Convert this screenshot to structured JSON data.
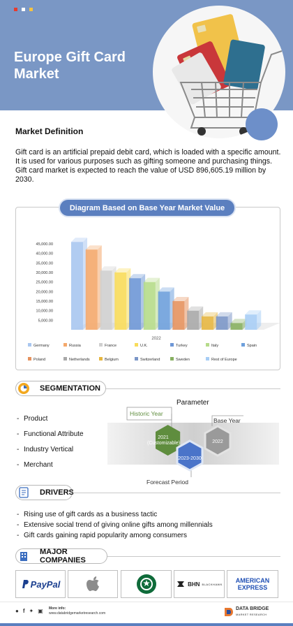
{
  "header": {
    "title_line1": "Europe Gift Card",
    "title_line2": "Market",
    "dot_colors": [
      "#e63b2e",
      "#ffffff",
      "#f5c342"
    ]
  },
  "definition": {
    "heading": "Market Definition",
    "text": "Gift card is an artificial prepaid debit card, which is loaded with a specific amount. It is used for various purposes such as gifting someone and purchasing things. Gift card market is expected to reach the value of USD 896,605.19 million by 2030."
  },
  "chart_section": {
    "pill_label": "Diagram Based on Base Year Market Value"
  },
  "chart_data": {
    "type": "bar",
    "categories": [
      "Germany",
      "Russia",
      "France",
      "U.K.",
      "Turkey",
      "Italy",
      "Spain",
      "Poland",
      "Netherlands",
      "Belgium",
      "Switzerland",
      "Sweden",
      "Rest of Europe"
    ],
    "values": [
      46000,
      42000,
      31000,
      30000,
      27000,
      25000,
      20000,
      15000,
      10000,
      7000,
      7000,
      3500,
      8000
    ],
    "colors": [
      "#a9c7f0",
      "#f4a86b",
      "#cfcfcf",
      "#f8dc5a",
      "#6e97d6",
      "#b6db8a",
      "#6ea0dc",
      "#e5925e",
      "#a8a8a8",
      "#e6b640",
      "#7b96c7",
      "#87b061",
      "#a7cdf5"
    ],
    "xlabel": "2022",
    "ylim": [
      0,
      45000
    ],
    "yticks": [
      "45,000.00",
      "40,000.00",
      "35,000.00",
      "30,000.00",
      "25,000.00",
      "20,000.00",
      "15,000.00",
      "10,000.00",
      "5,000.00"
    ],
    "legend_rows": [
      [
        "Germany",
        "Russia",
        "France",
        "U.K.",
        "Turkey",
        "Italy",
        "Spain"
      ],
      [
        "Poland",
        "Netherlands",
        "Belgium",
        "Switzerland",
        "Sweden",
        "Rest of Europe"
      ]
    ]
  },
  "segmentation": {
    "label": "SEGMENTATION",
    "items": [
      "Product",
      "Functional Attribute",
      "Industry Vertical",
      "Merchant"
    ]
  },
  "parameter": {
    "title": "Parameter",
    "historic_label": "Historic Year",
    "historic_value_line1": "2021",
    "historic_value_line2": "(Customizable)",
    "forecast_value": "2023-2030",
    "base_value": "2022",
    "base_label": "Base Year",
    "forecast_label": "Forecast Period"
  },
  "drivers": {
    "label": "DRIVERS",
    "items": [
      "Rising use of gift cards as a business tactic",
      "Extensive social trend of giving online gifts among millennials",
      "Gift cards gaining rapid popularity among consumers"
    ]
  },
  "companies": {
    "label": "MAJOR COMPANIES",
    "paypal": "PayPal",
    "bhn_line1": "BHN",
    "bhn_line2": "BLACKHAWK",
    "amex_line1": "AMERICAN",
    "amex_line2": "EXPRESS"
  },
  "footer": {
    "more_info": "More info:",
    "url": "www.databridgemarketresearch.com",
    "brand_line1": "DATA BRIDGE",
    "brand_line2": "MARKET RESEARCH"
  }
}
